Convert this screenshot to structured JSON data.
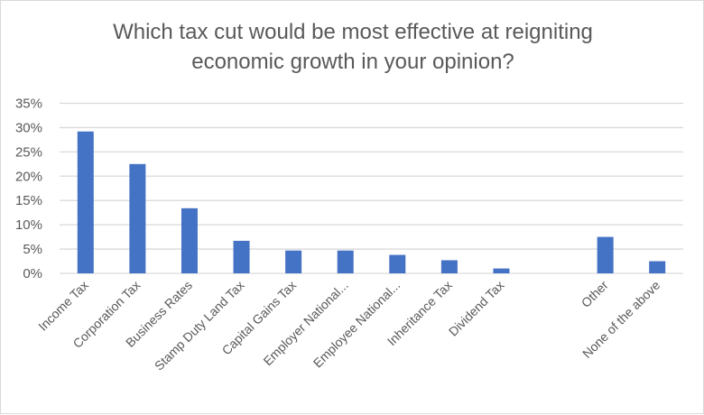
{
  "chart_data": {
    "type": "bar",
    "title_lines": [
      "Which tax cut would be most effective at reigniting",
      "economic growth in your opinion?"
    ],
    "categories": [
      "Income Tax",
      "Corporation Tax",
      "Business Rates",
      "Stamp Duty Land Tax",
      "Capital Gains Tax",
      "Employer National...",
      "Employee National...",
      "Inheritance Tax",
      "Dividend Tax",
      "",
      "Other",
      "None of the above"
    ],
    "values": [
      29.2,
      22.5,
      13.4,
      6.7,
      4.7,
      4.7,
      3.8,
      2.7,
      1.0,
      null,
      7.5,
      2.5
    ],
    "ylim": [
      0,
      35
    ],
    "yticks": [
      "0%",
      "5%",
      "10%",
      "15%",
      "20%",
      "25%",
      "30%",
      "35%"
    ],
    "grid": true,
    "bar_color": "#4472c4",
    "xlabel": "",
    "ylabel": ""
  }
}
